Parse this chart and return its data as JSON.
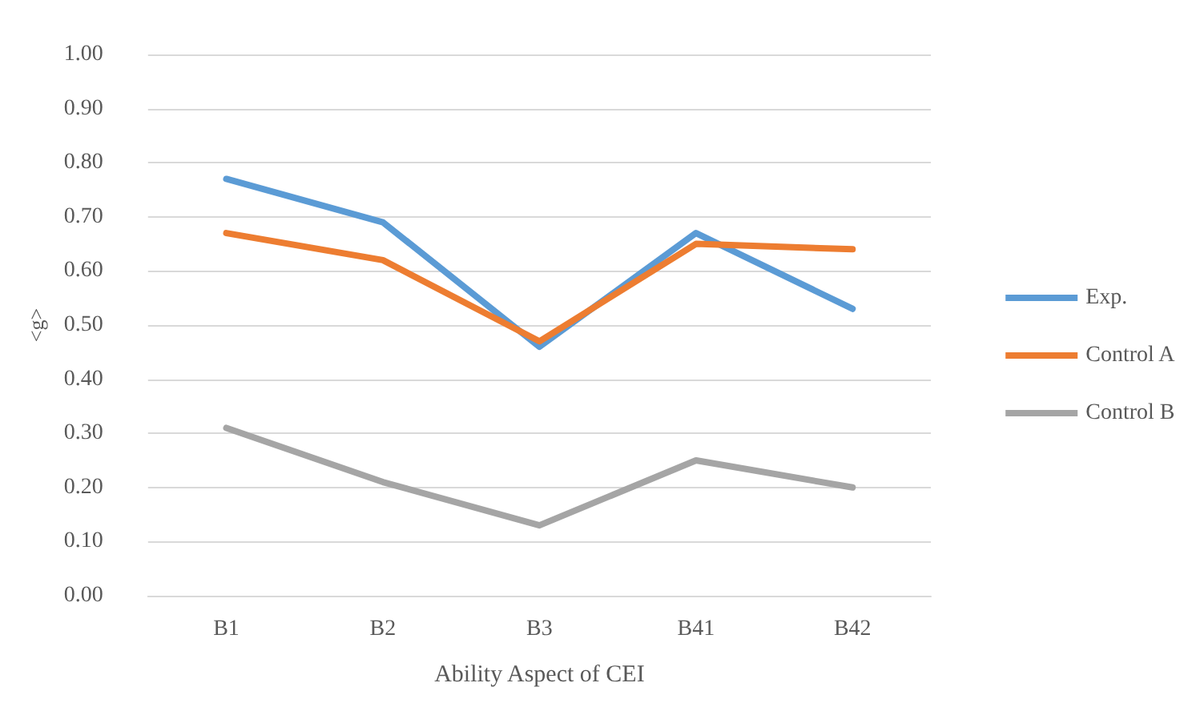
{
  "chart_data": {
    "type": "line",
    "xlabel": "Ability Aspect of CEI",
    "ylabel": "<g>",
    "categories": [
      "B1",
      "B2",
      "B3",
      "B41",
      "B42"
    ],
    "series": [
      {
        "name": "Exp.",
        "color": "#5b9bd5",
        "values": [
          0.77,
          0.69,
          0.46,
          0.67,
          0.53
        ]
      },
      {
        "name": "Control A",
        "color": "#ed7d31",
        "values": [
          0.67,
          0.62,
          0.47,
          0.65,
          0.64
        ]
      },
      {
        "name": "Control B",
        "color": "#a5a5a5",
        "values": [
          0.31,
          0.21,
          0.13,
          0.25,
          0.2
        ]
      }
    ],
    "ylim": [
      0,
      1
    ],
    "yticks": [
      {
        "value": 0,
        "label": "0.00"
      },
      {
        "value": 0.1,
        "label": "0.10"
      },
      {
        "value": 0.2,
        "label": "0.20"
      },
      {
        "value": 0.3,
        "label": "0.30"
      },
      {
        "value": 0.4,
        "label": "0.40"
      },
      {
        "value": 0.5,
        "label": "0.50"
      },
      {
        "value": 0.6,
        "label": "0.60"
      },
      {
        "value": 0.7,
        "label": "0.70"
      },
      {
        "value": 0.8,
        "label": "0.80"
      },
      {
        "value": 0.9,
        "label": "0.90"
      },
      {
        "value": 1,
        "label": "1.00"
      }
    ],
    "grid": "y",
    "legend": "right",
    "marker": "none",
    "line_style": "solid"
  }
}
